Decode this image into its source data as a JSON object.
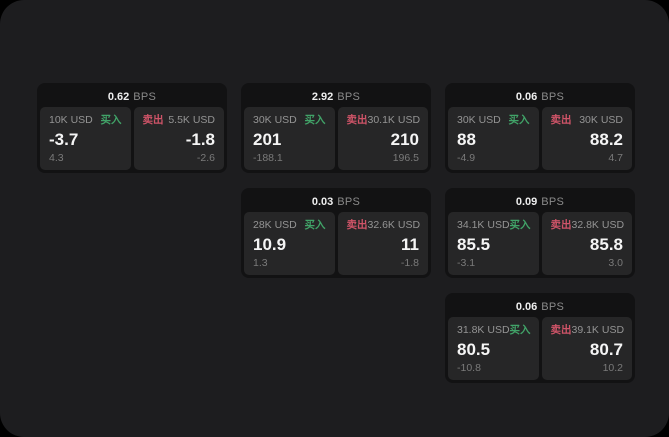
{
  "labels": {
    "buy": "买入",
    "sell": "卖出",
    "bps_unit": "BPS"
  },
  "colors": {
    "buy": "#41a368",
    "sell": "#cf5468",
    "page_background": "#1d1d1f",
    "card_background": "#121213",
    "panel_background": "#262627"
  },
  "cards": [
    {
      "row": 1,
      "col": 1,
      "bps": "0.62",
      "buy": {
        "amount": "10K USD",
        "value": "-3.7",
        "delta": "4.3"
      },
      "sell": {
        "amount": "5.5K USD",
        "value": "-1.8",
        "delta": "-2.6"
      }
    },
    {
      "row": 1,
      "col": 2,
      "bps": "2.92",
      "buy": {
        "amount": "30K USD",
        "value": "201",
        "delta": "-188.1"
      },
      "sell": {
        "amount": "30.1K USD",
        "value": "210",
        "delta": "196.5"
      }
    },
    {
      "row": 1,
      "col": 3,
      "bps": "0.06",
      "buy": {
        "amount": "30K USD",
        "value": "88",
        "delta": "-4.9"
      },
      "sell": {
        "amount": "30K USD",
        "value": "88.2",
        "delta": "4.7"
      }
    },
    {
      "row": 2,
      "col": 2,
      "bps": "0.03",
      "buy": {
        "amount": "28K USD",
        "value": "10.9",
        "delta": "1.3"
      },
      "sell": {
        "amount": "32.6K USD",
        "value": "11",
        "delta": "-1.8"
      }
    },
    {
      "row": 2,
      "col": 3,
      "bps": "0.09",
      "buy": {
        "amount": "34.1K USD",
        "value": "85.5",
        "delta": "-3.1"
      },
      "sell": {
        "amount": "32.8K USD",
        "value": "85.8",
        "delta": "3.0"
      }
    },
    {
      "row": 3,
      "col": 3,
      "bps": "0.06",
      "buy": {
        "amount": "31.8K USD",
        "value": "80.5",
        "delta": "-10.8"
      },
      "sell": {
        "amount": "39.1K USD",
        "value": "80.7",
        "delta": "10.2"
      }
    }
  ]
}
